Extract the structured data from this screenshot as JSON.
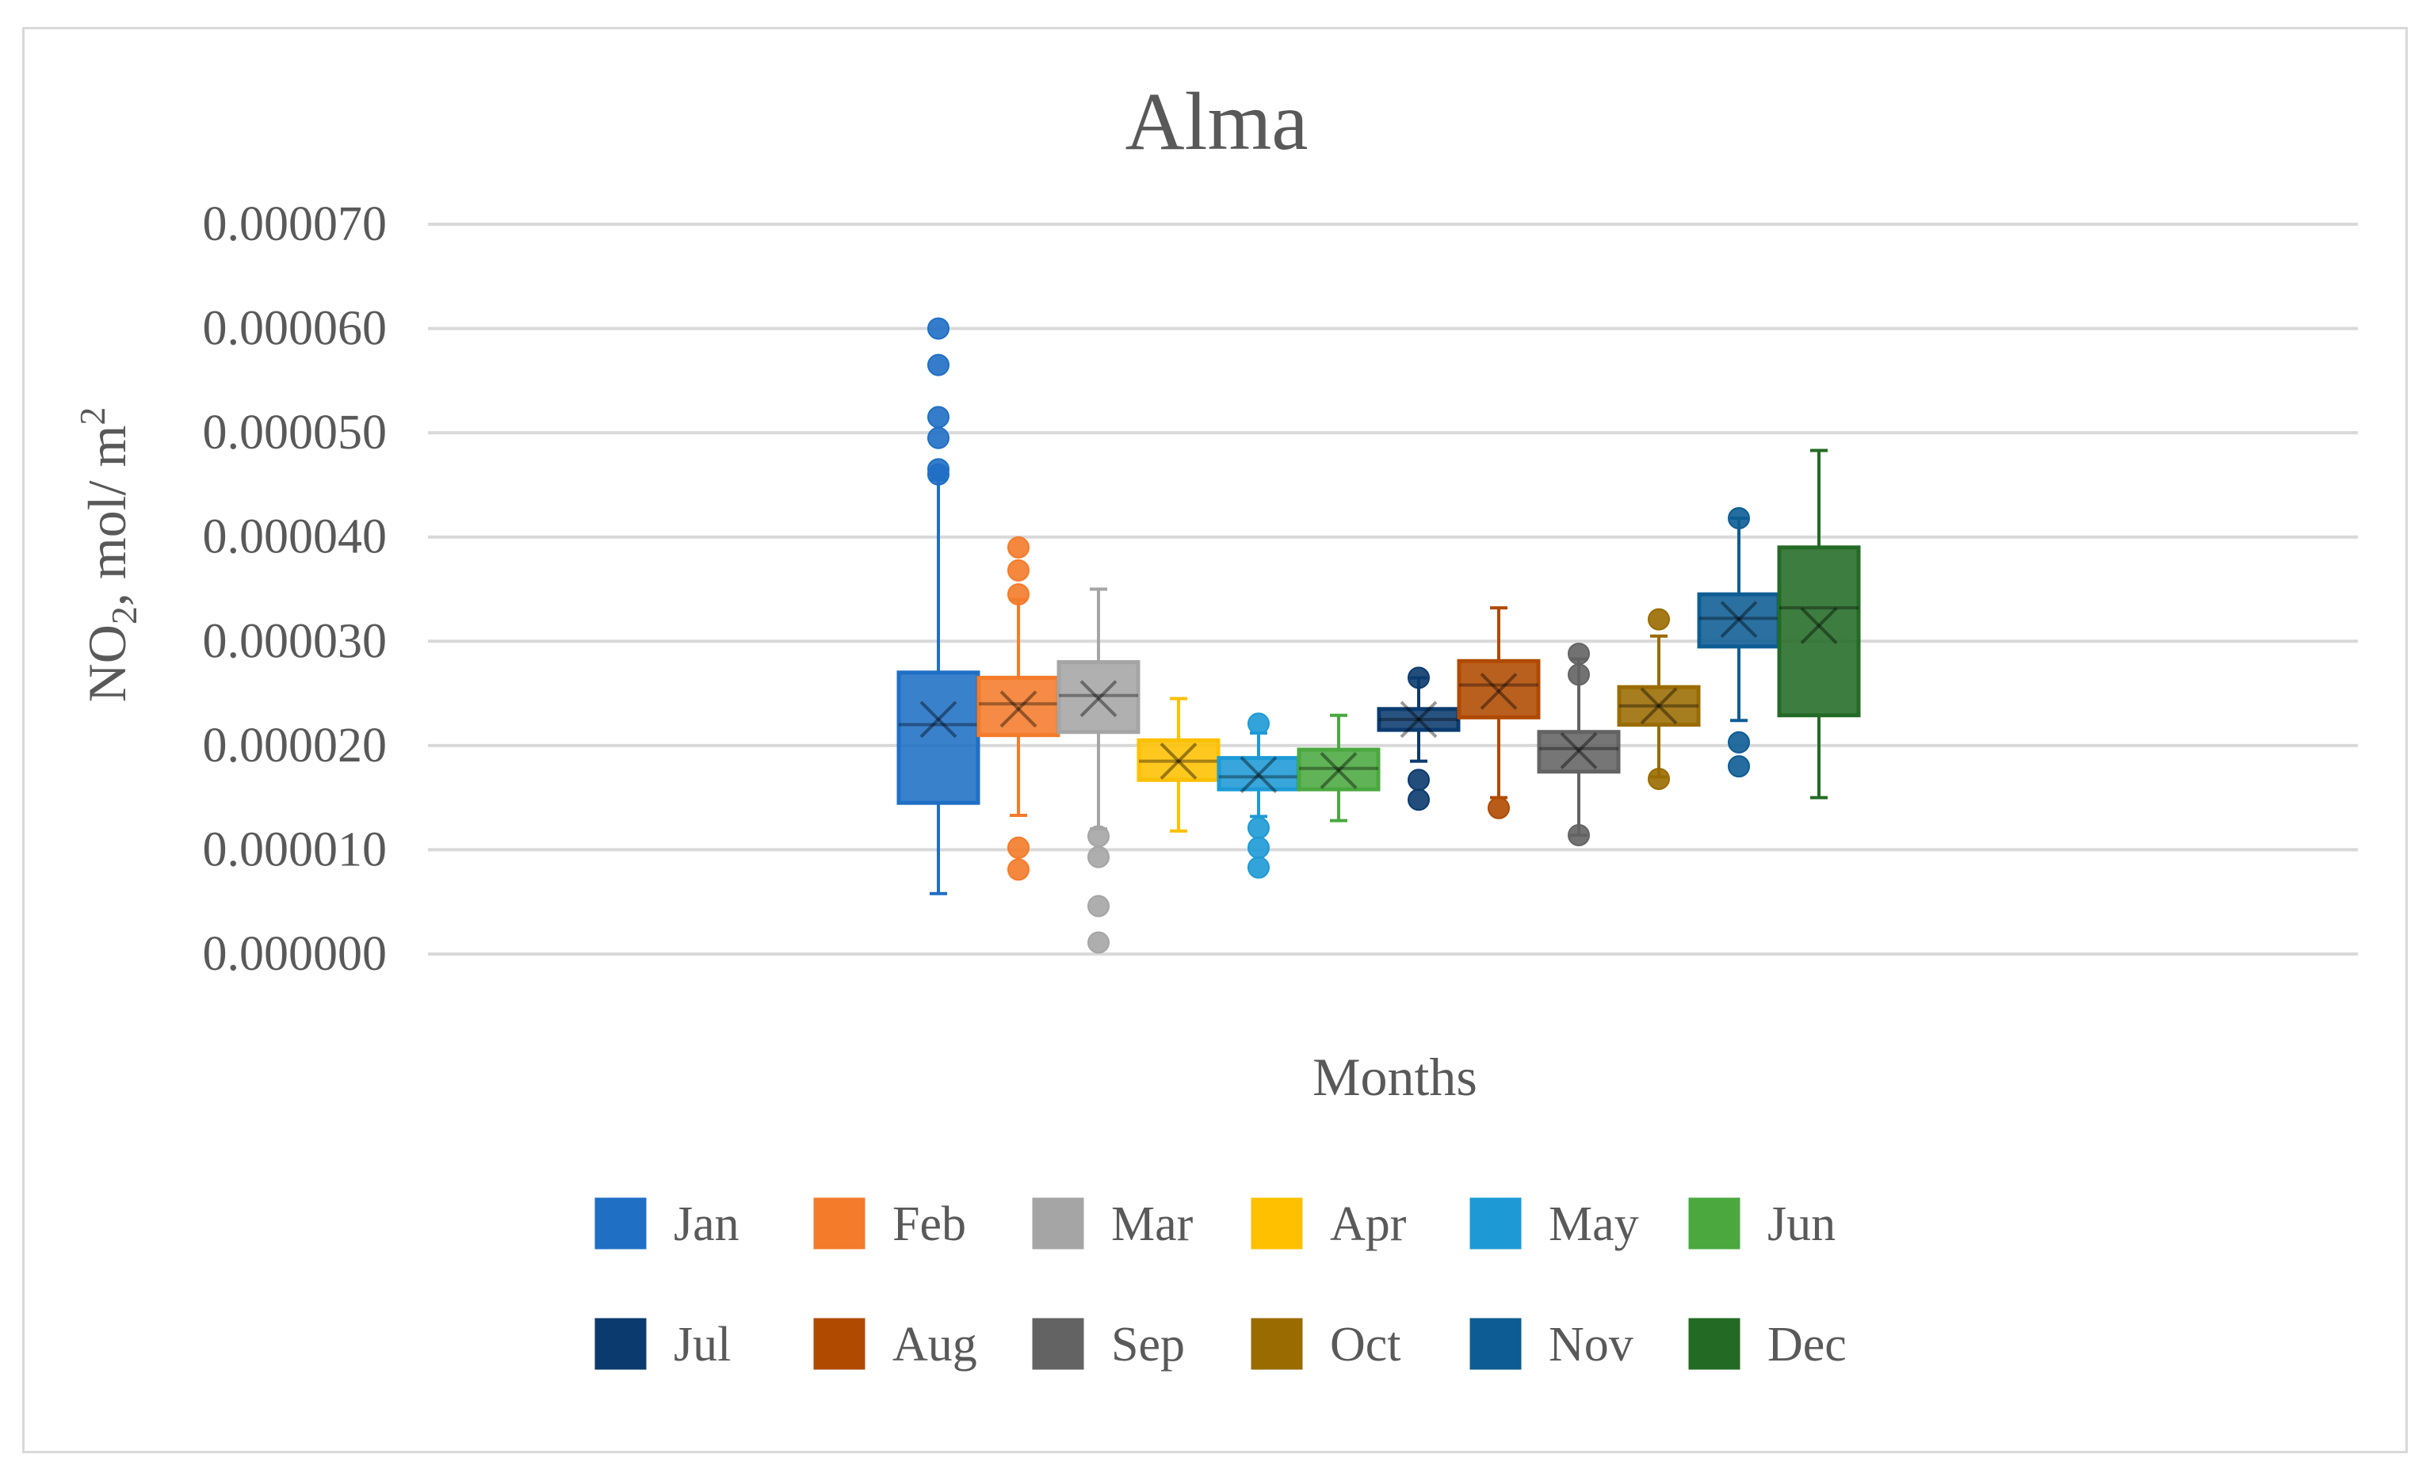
{
  "chart_data": {
    "type": "box",
    "title": "Alma",
    "xlabel": "Months",
    "ylabel": {
      "prefix": "NO",
      "prefix_subscript": "2",
      "unit": ", mol/ m",
      "unit_superscript": "2"
    },
    "ylim": [
      0.0,
      7e-05
    ],
    "yticks": [
      0.0,
      1e-05,
      2e-05,
      3e-05,
      4e-05,
      5e-05,
      6e-05,
      7e-05
    ],
    "ytick_labels": [
      "0.000000",
      "0.000010",
      "0.000020",
      "0.000030",
      "0.000040",
      "0.000050",
      "0.000060",
      "0.000070"
    ],
    "grid": true,
    "legend_position": "bottom",
    "series": [
      {
        "name": "Jan",
        "color": "#1f6fc5",
        "q1": 1.45e-05,
        "median": 2.2e-05,
        "q3": 2.7e-05,
        "mean": 2.25e-05,
        "whisker_low": 5.8e-06,
        "whisker_high": 4.55e-05,
        "outliers": [
          4.6e-05,
          4.65e-05,
          4.95e-05,
          5.15e-05,
          5.65e-05,
          6e-05
        ]
      },
      {
        "name": "Feb",
        "color": "#f47b2a",
        "q1": 2.1e-05,
        "median": 2.4e-05,
        "q3": 2.65e-05,
        "mean": 2.35e-05,
        "whisker_low": 1.33e-05,
        "whisker_high": 3.4e-05,
        "outliers": [
          8.1e-06,
          1.02e-05,
          3.45e-05,
          3.68e-05,
          3.9e-05
        ]
      },
      {
        "name": "Mar",
        "color": "#a5a5a5",
        "q1": 2.13e-05,
        "median": 2.48e-05,
        "q3": 2.8e-05,
        "mean": 2.45e-05,
        "whisker_low": 1.2e-05,
        "whisker_high": 3.5e-05,
        "outliers": [
          1.1e-06,
          4.6e-06,
          9.3e-06,
          1.13e-05
        ]
      },
      {
        "name": "Apr",
        "color": "#ffc000",
        "q1": 1.67e-05,
        "median": 1.85e-05,
        "q3": 2.05e-05,
        "mean": 1.85e-05,
        "whisker_low": 1.18e-05,
        "whisker_high": 2.45e-05,
        "outliers": []
      },
      {
        "name": "May",
        "color": "#1d9ad6",
        "q1": 1.58e-05,
        "median": 1.7e-05,
        "q3": 1.88e-05,
        "mean": 1.72e-05,
        "whisker_low": 1.32e-05,
        "whisker_high": 2.12e-05,
        "outliers": [
          8.3e-06,
          1.02e-05,
          1.21e-05,
          2.21e-05
        ]
      },
      {
        "name": "Jun",
        "color": "#4aa83f",
        "q1": 1.58e-05,
        "median": 1.78e-05,
        "q3": 1.96e-05,
        "mean": 1.76e-05,
        "whisker_low": 1.28e-05,
        "whisker_high": 2.29e-05,
        "outliers": []
      },
      {
        "name": "Jul",
        "color": "#0b3b6e",
        "q1": 2.15e-05,
        "median": 2.25e-05,
        "q3": 2.35e-05,
        "mean": 2.25e-05,
        "whisker_low": 1.85e-05,
        "whisker_high": 2.65e-05,
        "outliers": [
          1.48e-05,
          1.67e-05,
          2.65e-05
        ]
      },
      {
        "name": "Aug",
        "color": "#b04a00",
        "q1": 2.27e-05,
        "median": 2.58e-05,
        "q3": 2.81e-05,
        "mean": 2.52e-05,
        "whisker_low": 1.5e-05,
        "whisker_high": 3.32e-05,
        "outliers": [
          1.4e-05
        ]
      },
      {
        "name": "Sep",
        "color": "#636363",
        "q1": 1.75e-05,
        "median": 1.97e-05,
        "q3": 2.13e-05,
        "mean": 1.95e-05,
        "whisker_low": 1.14e-05,
        "whisker_high": 2.83e-05,
        "outliers": [
          1.14e-05,
          2.68e-05,
          2.88e-05
        ]
      },
      {
        "name": "Oct",
        "color": "#9a6b00",
        "q1": 2.2e-05,
        "median": 2.38e-05,
        "q3": 2.56e-05,
        "mean": 2.38e-05,
        "whisker_low": 1.7e-05,
        "whisker_high": 3.05e-05,
        "outliers": [
          1.68e-05,
          3.21e-05
        ]
      },
      {
        "name": "Nov",
        "color": "#0d5d94",
        "q1": 2.95e-05,
        "median": 3.22e-05,
        "q3": 3.45e-05,
        "mean": 3.21e-05,
        "whisker_low": 2.24e-05,
        "whisker_high": 4.18e-05,
        "outliers": [
          1.8e-05,
          2.03e-05,
          4.18e-05
        ]
      },
      {
        "name": "Dec",
        "color": "#236b25",
        "q1": 2.29e-05,
        "median": 3.32e-05,
        "q3": 3.9e-05,
        "mean": 3.15e-05,
        "whisker_low": 1.5e-05,
        "whisker_high": 4.83e-05,
        "outliers": []
      }
    ]
  }
}
